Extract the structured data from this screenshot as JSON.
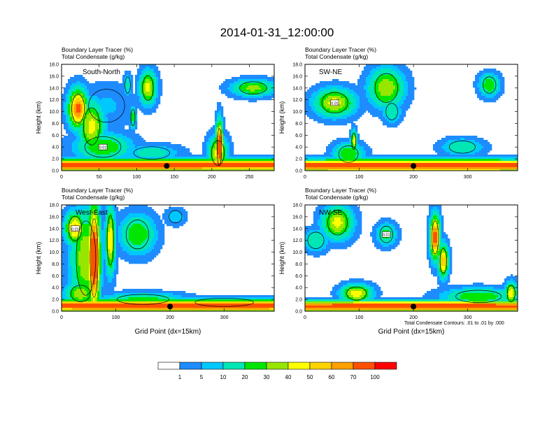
{
  "title": "2014-01-31_12:00:00",
  "panel_subtitle_line1": "Boundary Layer Tracer   (%)",
  "panel_subtitle_line2": "Total Condensate   (g/kg)",
  "ylabel": "Height (km)",
  "xlabel": "Grid Point (dx=15km)",
  "contour_note": "Total Condensate Contours: .01 to .01 by .000",
  "contour_label": "0.01",
  "colorbar": {
    "colors": [
      "#ffffff",
      "#1e8cff",
      "#00c8ff",
      "#00e6b4",
      "#00e600",
      "#96e600",
      "#ffff00",
      "#ffd200",
      "#ffa000",
      "#ff5000",
      "#ff0000"
    ],
    "labels": [
      "1",
      "5",
      "10",
      "20",
      "30",
      "40",
      "50",
      "60",
      "70",
      "100"
    ]
  },
  "chart_data": [
    {
      "type": "heatmap",
      "name": "South-North",
      "xlim": [
        0,
        283
      ],
      "ylim": [
        0,
        18
      ],
      "xticks": [
        "0",
        "50",
        "100",
        "150",
        "200",
        "250"
      ],
      "xtick_values": [
        0,
        50,
        100,
        150,
        200,
        250
      ],
      "yticks": [
        "0.0",
        "2.0",
        "4.0",
        "6.0",
        "8.0",
        "10.0",
        "12.0",
        "14.0",
        "16.0",
        "18.0"
      ],
      "marker": {
        "x": 140,
        "y": 0.8
      },
      "blobs": [
        {
          "x": 5,
          "y": 0.9,
          "rx": 1200,
          "ry": 1.1,
          "v": 85
        },
        {
          "x": 22,
          "y": 10.5,
          "rx": 14,
          "ry": 3.5,
          "v": 75
        },
        {
          "x": 40,
          "y": 7.5,
          "rx": 18,
          "ry": 4.5,
          "v": 45
        },
        {
          "x": 55,
          "y": 4,
          "rx": 40,
          "ry": 2.5,
          "v": 30
        },
        {
          "x": 120,
          "y": 3,
          "rx": 40,
          "ry": 1.5,
          "v": 15
        },
        {
          "x": 115,
          "y": 14,
          "rx": 12,
          "ry": 3,
          "v": 45
        },
        {
          "x": 88,
          "y": 14.5,
          "rx": 6,
          "ry": 2,
          "v": 15
        },
        {
          "x": 95,
          "y": 9,
          "rx": 4,
          "ry": 2,
          "v": 30
        },
        {
          "x": 210,
          "y": 4,
          "rx": 5,
          "ry": 4.5,
          "v": 100
        },
        {
          "x": 208,
          "y": 3,
          "rx": 14,
          "ry": 3,
          "v": 45
        },
        {
          "x": 255,
          "y": 14,
          "rx": 30,
          "ry": 1.5,
          "v": 35
        },
        {
          "x": 60,
          "y": 11,
          "rx": 40,
          "ry": 4,
          "v": 6
        }
      ]
    },
    {
      "type": "heatmap",
      "name": "SW-NE",
      "xlim": [
        0,
        392
      ],
      "ylim": [
        0,
        18
      ],
      "xticks": [
        "0",
        "100",
        "200",
        "300"
      ],
      "xtick_values": [
        0,
        100,
        200,
        300
      ],
      "yticks": [
        "0.0",
        "2.0",
        "4.0",
        "6.0",
        "8.0",
        "10.0",
        "12.0",
        "14.0",
        "16.0",
        "18.0"
      ],
      "marker": {
        "x": 200,
        "y": 0.8
      },
      "blobs": [
        {
          "x": 200,
          "y": 0.8,
          "rx": 1200,
          "ry": 1.1,
          "v": 85
        },
        {
          "x": 80,
          "y": 2.8,
          "rx": 30,
          "ry": 2,
          "v": 30
        },
        {
          "x": 90,
          "y": 5,
          "rx": 6,
          "ry": 2,
          "v": 45
        },
        {
          "x": 55,
          "y": 11.5,
          "rx": 40,
          "ry": 2.5,
          "v": 45
        },
        {
          "x": 150,
          "y": 14,
          "rx": 35,
          "ry": 3.5,
          "v": 40
        },
        {
          "x": 290,
          "y": 4,
          "rx": 40,
          "ry": 1.5,
          "v": 20
        },
        {
          "x": 340,
          "y": 14.5,
          "rx": 20,
          "ry": 2,
          "v": 30
        },
        {
          "x": 160,
          "y": 10,
          "rx": 18,
          "ry": 2,
          "v": 20
        }
      ]
    },
    {
      "type": "heatmap",
      "name": "West-East",
      "xlim": [
        0,
        392
      ],
      "ylim": [
        0,
        18
      ],
      "xticks": [
        "0",
        "100",
        "200",
        "300"
      ],
      "xtick_values": [
        0,
        100,
        200,
        300
      ],
      "yticks": [
        "0.0",
        "2.0",
        "4.0",
        "6.0",
        "8.0",
        "10.0",
        "12.0",
        "14.0",
        "16.0",
        "18.0"
      ],
      "marker": {
        "x": 200,
        "y": 0.8
      },
      "blobs": [
        {
          "x": 200,
          "y": 0.9,
          "rx": 1200,
          "ry": 1.1,
          "v": 85
        },
        {
          "x": 60,
          "y": 9,
          "rx": 12,
          "ry": 9.5,
          "v": 100
        },
        {
          "x": 45,
          "y": 9,
          "rx": 30,
          "ry": 9,
          "v": 40
        },
        {
          "x": 25,
          "y": 14,
          "rx": 20,
          "ry": 3,
          "v": 55
        },
        {
          "x": 90,
          "y": 12,
          "rx": 10,
          "ry": 6,
          "v": 50
        },
        {
          "x": 35,
          "y": 3,
          "rx": 30,
          "ry": 2,
          "v": 40
        },
        {
          "x": 150,
          "y": 2,
          "rx": 80,
          "ry": 1.2,
          "v": 25
        },
        {
          "x": 140,
          "y": 13,
          "rx": 35,
          "ry": 3.5,
          "v": 30
        },
        {
          "x": 210,
          "y": 16,
          "rx": 20,
          "ry": 1.5,
          "v": 10
        },
        {
          "x": 300,
          "y": 1.5,
          "rx": 90,
          "ry": 1,
          "v": 20
        }
      ]
    },
    {
      "type": "heatmap",
      "name": "NW-SE",
      "xlim": [
        0,
        392
      ],
      "ylim": [
        0,
        18
      ],
      "xticks": [
        "0",
        "100",
        "200",
        "300"
      ],
      "xtick_values": [
        0,
        100,
        200,
        300
      ],
      "yticks": [
        "0.0",
        "2.0",
        "4.0",
        "6.0",
        "8.0",
        "10.0",
        "12.0",
        "14.0",
        "16.0",
        "18.0"
      ],
      "marker": {
        "x": 200,
        "y": 0.8
      },
      "blobs": [
        {
          "x": 200,
          "y": 0.8,
          "rx": 1200,
          "ry": 1.0,
          "v": 85
        },
        {
          "x": 60,
          "y": 15,
          "rx": 30,
          "ry": 3,
          "v": 45
        },
        {
          "x": 20,
          "y": 12,
          "rx": 25,
          "ry": 2,
          "v": 20
        },
        {
          "x": 150,
          "y": 13,
          "rx": 20,
          "ry": 2,
          "v": 25
        },
        {
          "x": 240,
          "y": 12.5,
          "rx": 10,
          "ry": 4,
          "v": 80
        },
        {
          "x": 255,
          "y": 8.5,
          "rx": 10,
          "ry": 3,
          "v": 60
        },
        {
          "x": 95,
          "y": 3,
          "rx": 30,
          "ry": 1.6,
          "v": 50
        },
        {
          "x": 320,
          "y": 2.5,
          "rx": 70,
          "ry": 1.5,
          "v": 30
        },
        {
          "x": 380,
          "y": 3,
          "rx": 12,
          "ry": 2,
          "v": 50
        }
      ]
    }
  ]
}
